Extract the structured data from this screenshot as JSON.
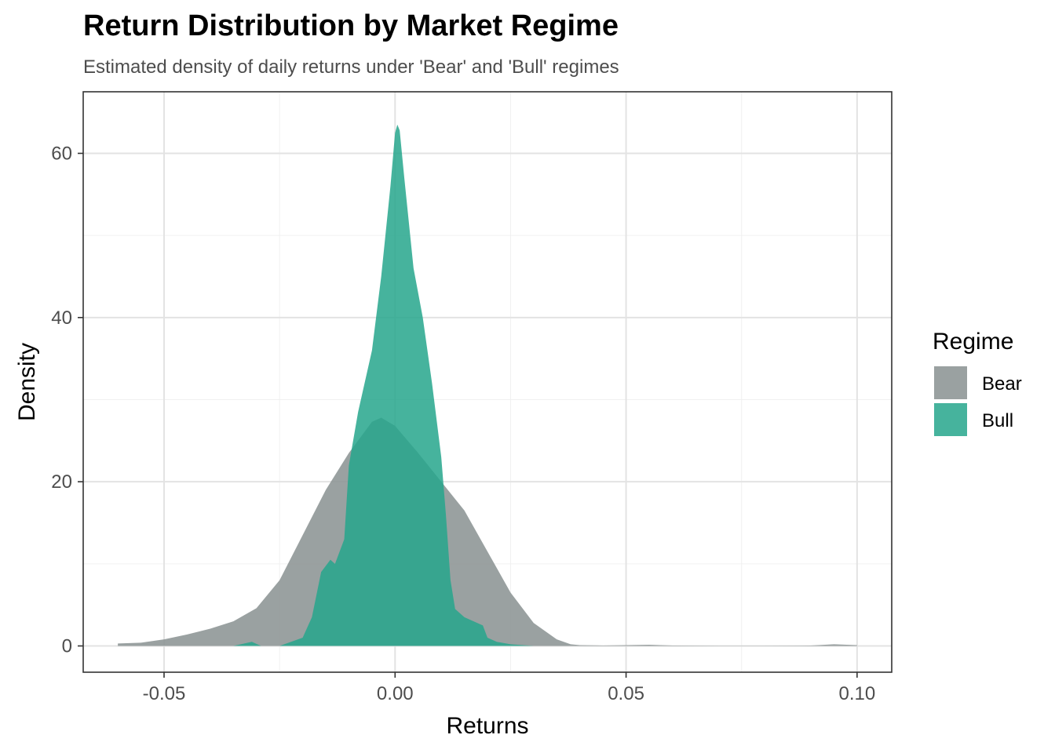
{
  "chart_data": {
    "type": "area",
    "title": "Return Distribution by Market Regime",
    "subtitle": "Estimated density of daily returns under 'Bear' and 'Bull' regimes",
    "xlabel": "Returns",
    "ylabel": "Density",
    "xlim": [
      -0.0675,
      0.1075
    ],
    "ylim": [
      -3.2,
      67.5
    ],
    "xticks": [
      -0.05,
      0.0,
      0.05,
      0.1
    ],
    "xtick_labels": [
      "-0.05",
      "0.00",
      "0.05",
      "0.10"
    ],
    "yticks": [
      0,
      20,
      40,
      60
    ],
    "ytick_labels": [
      "0",
      "20",
      "40",
      "60"
    ],
    "grid": true,
    "legend": {
      "title": "Regime",
      "placement": "right"
    },
    "series": [
      {
        "name": "Bear",
        "color": "#8c9494",
        "opacity": 0.88,
        "x": [
          -0.06,
          -0.055,
          -0.05,
          -0.045,
          -0.04,
          -0.035,
          -0.03,
          -0.025,
          -0.02,
          -0.015,
          -0.01,
          -0.005,
          -0.003,
          0.0,
          0.005,
          0.01,
          0.015,
          0.02,
          0.025,
          0.03,
          0.035,
          0.038,
          0.04,
          0.045,
          0.05,
          0.055,
          0.06,
          0.07,
          0.08,
          0.09,
          0.095,
          0.1
        ],
        "y": [
          0.3,
          0.4,
          0.8,
          1.4,
          2.1,
          3.0,
          4.6,
          8.0,
          13.5,
          19.0,
          23.5,
          27.3,
          27.8,
          26.8,
          23.5,
          20.0,
          16.5,
          11.5,
          6.5,
          2.8,
          0.8,
          0.2,
          0.1,
          0.05,
          0.1,
          0.15,
          0.05,
          0.02,
          0.02,
          0.05,
          0.2,
          0.1
        ]
      },
      {
        "name": "Bull",
        "color": "#26a68c",
        "opacity": 0.85,
        "x": [
          -0.06,
          -0.035,
          -0.031,
          -0.029,
          -0.025,
          -0.02,
          -0.018,
          -0.016,
          -0.014,
          -0.013,
          -0.011,
          -0.01,
          -0.008,
          -0.005,
          -0.003,
          -0.001,
          0.0,
          0.0005,
          0.001,
          0.002,
          0.004,
          0.006,
          0.008,
          0.01,
          0.011,
          0.012,
          0.013,
          0.015,
          0.017,
          0.019,
          0.02,
          0.022,
          0.025,
          0.03,
          0.1
        ],
        "y": [
          0.0,
          0.0,
          0.5,
          0.0,
          0.0,
          1.0,
          3.5,
          9.0,
          10.5,
          10.0,
          13.0,
          22.0,
          28.5,
          36.0,
          45.0,
          56.0,
          62.5,
          63.5,
          62.8,
          57.0,
          46.0,
          40.0,
          32.0,
          23.0,
          16.0,
          8.0,
          4.5,
          3.5,
          3.0,
          2.5,
          1.0,
          0.5,
          0.2,
          0.0,
          0.0
        ]
      }
    ]
  }
}
